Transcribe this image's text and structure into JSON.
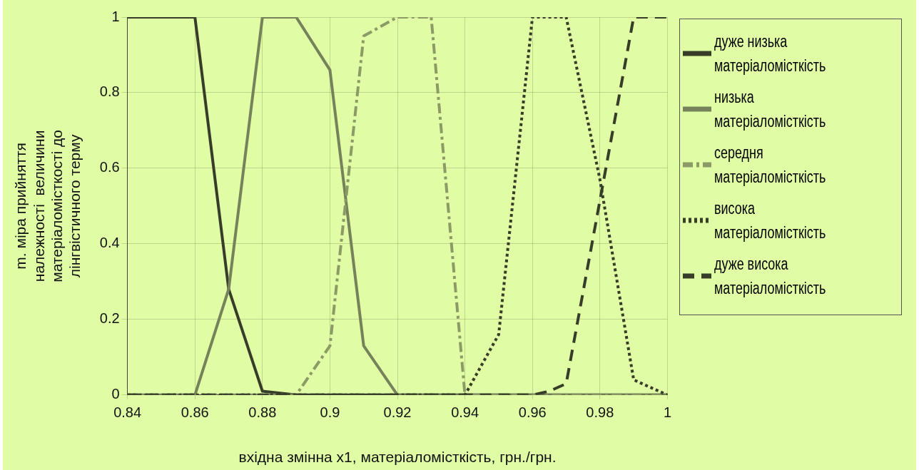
{
  "chart_data": {
    "type": "line",
    "xlabel": "вхідна змінна x1, матеріаломісткість, грн./грн.",
    "ylabel": "m. міра прийняття\nналежності  величини\nматеріаломісткості до\nлінгвістичного терму",
    "x": [
      0.84,
      0.85,
      0.86,
      0.87,
      0.88,
      0.89,
      0.9,
      0.91,
      0.92,
      0.93,
      0.94,
      0.95,
      0.96,
      0.97,
      0.98,
      0.99,
      1
    ],
    "series": [
      {
        "name": "дуже низька матеріаломісткість",
        "color": "#373d28",
        "line_style": "solid",
        "values": [
          1,
          1,
          1,
          0.28,
          0.01,
          0,
          0,
          0,
          0,
          0,
          0,
          0,
          0,
          0,
          0,
          0,
          0
        ]
      },
      {
        "name": "низька матеріаломісткість",
        "color": "#76835a",
        "line_style": "solid",
        "values": [
          0,
          0,
          0,
          0.28,
          1,
          1,
          0.86,
          0.13,
          0,
          0,
          0,
          0,
          0,
          0,
          0,
          0,
          0
        ]
      },
      {
        "name": "середня матеріаломісткість",
        "color": "#8c9a66",
        "line_style": "dashdot",
        "values": [
          0,
          0,
          0,
          0,
          0,
          0,
          0.13,
          0.95,
          1,
          1,
          0,
          0,
          0,
          0,
          0,
          0,
          0
        ]
      },
      {
        "name": "висока матеріаломісткість",
        "color": "#373d28",
        "line_style": "dotted",
        "values": [
          0,
          0,
          0,
          0,
          0,
          0,
          0,
          0,
          0,
          0,
          0,
          0.16,
          1,
          1,
          0.57,
          0.04,
          0
        ]
      },
      {
        "name": "дуже висока матеріаломісткість",
        "color": "#373d28",
        "line_style": "dashed",
        "x": [
          0.84,
          0.96,
          0.965,
          0.97,
          0.99,
          1
        ],
        "values": [
          0,
          0,
          0.01,
          0.03,
          1,
          1
        ]
      }
    ],
    "xlim": [
      0.84,
      1
    ],
    "xticks": [
      0.84,
      0.86,
      0.88,
      0.9,
      0.92,
      0.94,
      0.96,
      0.98,
      1
    ],
    "ylim": [
      0,
      1
    ],
    "yticks": [
      0,
      0.2,
      0.4,
      0.6,
      0.8,
      1
    ],
    "grid": true,
    "legend": "right",
    "marker": "none"
  }
}
